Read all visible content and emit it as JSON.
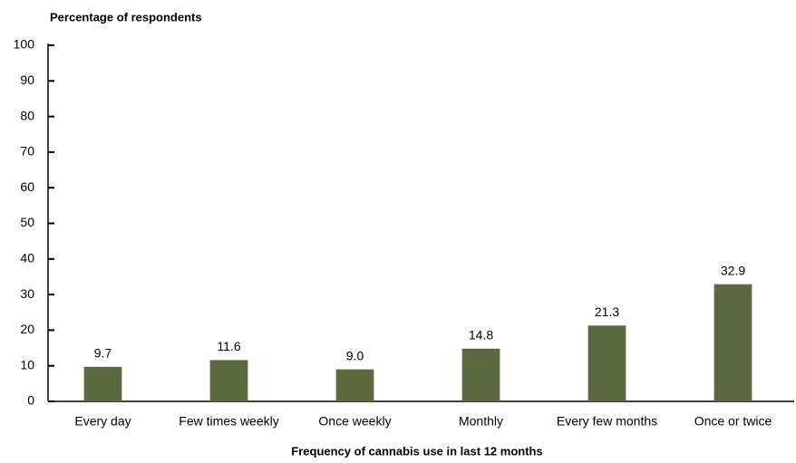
{
  "chart_data": {
    "type": "bar",
    "y_axis_label": "Percentage of respondents",
    "x_axis_label": "Frequency of cannabis use in last 12 months",
    "categories": [
      "Every day",
      "Few times weekly",
      "Once weekly",
      "Monthly",
      "Every few months",
      "Once or twice"
    ],
    "values": [
      9.7,
      11.6,
      9.0,
      14.8,
      21.3,
      32.9
    ],
    "value_labels": [
      "9.7",
      "11.6",
      "9.0",
      "14.8",
      "21.3",
      "32.9"
    ],
    "color": "#5b6840",
    "ylim": [
      0,
      100
    ],
    "yticks": [
      0,
      10,
      20,
      30,
      40,
      50,
      60,
      70,
      80,
      90,
      100
    ],
    "grid": false
  }
}
